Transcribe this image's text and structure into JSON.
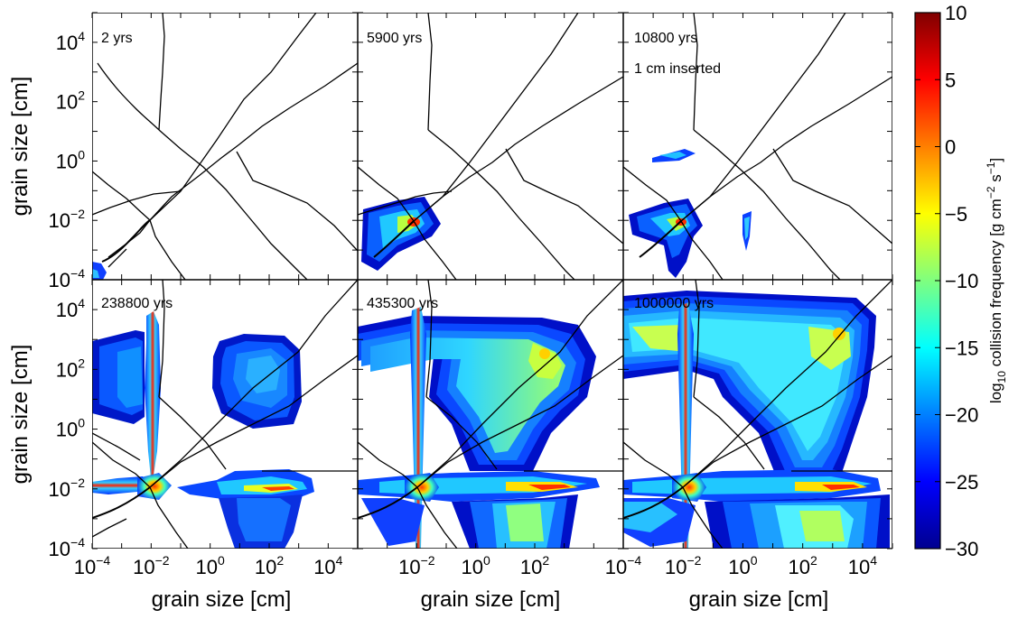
{
  "chart_data": {
    "type": "heatmap",
    "xlabel": "grain size [cm]",
    "ylabel": "grain size [cm]",
    "xscale": "log",
    "yscale": "log",
    "xlim": [
      0.0001,
      100000
    ],
    "ylim": [
      0.0001,
      100000
    ],
    "xticks": [
      {
        "base": "10",
        "exp": "−4",
        "v": -4
      },
      {
        "base": "10",
        "exp": "−2",
        "v": -2
      },
      {
        "base": "10",
        "exp": "0",
        "v": 0
      },
      {
        "base": "10",
        "exp": "2",
        "v": 2
      },
      {
        "base": "10",
        "exp": "4",
        "v": 4
      }
    ],
    "yticks": [
      {
        "base": "10",
        "exp": "4",
        "v": 4
      },
      {
        "base": "10",
        "exp": "2",
        "v": 2
      },
      {
        "base": "10",
        "exp": "0",
        "v": 0
      },
      {
        "base": "10",
        "exp": "−2",
        "v": -2
      },
      {
        "base": "10",
        "exp": "−4",
        "v": -4
      }
    ],
    "panels": [
      {
        "time": "2 yrs",
        "note": ""
      },
      {
        "time": "5900 yrs",
        "note": ""
      },
      {
        "time": "10800 yrs",
        "note": "1 cm inserted"
      },
      {
        "time": "238800 yrs",
        "note": ""
      },
      {
        "time": "435300 yrs",
        "note": ""
      },
      {
        "time": "1000000 yrs",
        "note": ""
      }
    ],
    "colorbar": {
      "label_main": "log",
      "label_sub": "10",
      "label_rest": " collision frequency [g cm",
      "label_exp1": "−2",
      "label_mid": " s",
      "label_exp2": "−1",
      "label_end": "]",
      "range": [
        -30,
        10
      ],
      "ticks": [
        {
          "v": 10,
          "label": "10"
        },
        {
          "v": 5,
          "label": "5"
        },
        {
          "v": 0,
          "label": "0"
        },
        {
          "v": -5,
          "label": "−5"
        },
        {
          "v": -10,
          "label": "−10"
        },
        {
          "v": -15,
          "label": "−15"
        },
        {
          "v": -20,
          "label": "−20"
        },
        {
          "v": -25,
          "label": "−25"
        },
        {
          "v": -30,
          "label": "−30"
        }
      ],
      "colormap": "jet"
    },
    "grid": false
  }
}
